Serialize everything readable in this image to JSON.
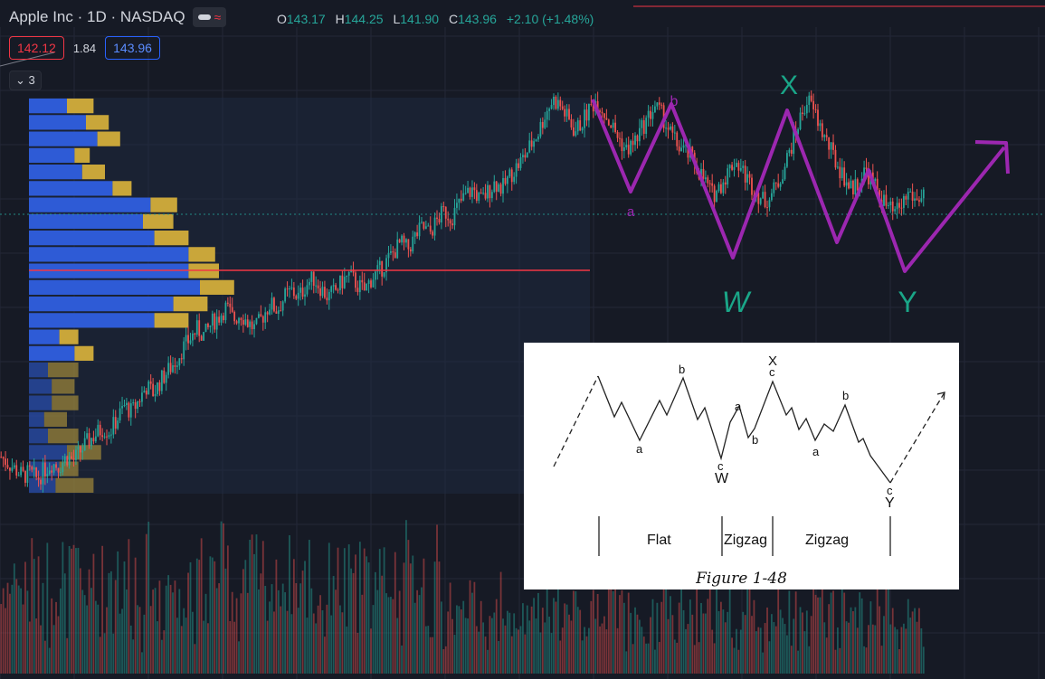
{
  "header": {
    "title": "Apple Inc · 1D · NASDAQ",
    "open_label": "O",
    "open": "143.17",
    "high_label": "H",
    "high": "144.25",
    "low_label": "L",
    "low": "141.90",
    "close_label": "C",
    "close": "143.96",
    "change": "+2.10 (+1.48%)"
  },
  "trade": {
    "sell": "142.12",
    "spread": "1.84",
    "buy": "143.96"
  },
  "indicators_toggle": "3",
  "colors": {
    "up": "#26a69a",
    "down": "#ef5350",
    "annotation": "#9c27b0",
    "wave_label": "#1aa688",
    "poc_line": "#f23645"
  },
  "chart_data": {
    "type": "candlestick",
    "title": "",
    "xlabel": "",
    "ylabel": "",
    "grid": true,
    "price_path": [
      128,
      126,
      124,
      122,
      123,
      121,
      124,
      126,
      125,
      128,
      127,
      130,
      133,
      135,
      137,
      136,
      140,
      144,
      142,
      146,
      150,
      148,
      152,
      155,
      158,
      162,
      165,
      168,
      166,
      170,
      172,
      175,
      171,
      173,
      170,
      168,
      172,
      176,
      174,
      178,
      180,
      178,
      182,
      184,
      181,
      178,
      180,
      183,
      185,
      182,
      180,
      184,
      186,
      189,
      192,
      195,
      193,
      197,
      200,
      198,
      202,
      205,
      203,
      207,
      210,
      212,
      208,
      211,
      214,
      212,
      216,
      219,
      222,
      226,
      230,
      236,
      240,
      238,
      234,
      230,
      233,
      237,
      240,
      236,
      232,
      228,
      224,
      226,
      230,
      234,
      238,
      235,
      230,
      226,
      224,
      222,
      218,
      214,
      210,
      213,
      217,
      221,
      218,
      214,
      211,
      208,
      210,
      214,
      220,
      227,
      234,
      240,
      236,
      230,
      225,
      220,
      216,
      212,
      214,
      218,
      214,
      210,
      206,
      204,
      207,
      211,
      208,
      211
    ],
    "wave_labels": [
      "X",
      "W",
      "Y",
      "a",
      "b"
    ],
    "volume_profile": {
      "up_volumes": [
        10,
        15,
        18,
        12,
        14,
        22,
        32,
        30,
        33,
        42,
        42,
        45,
        38,
        33,
        8,
        12,
        5,
        6,
        6,
        4,
        5,
        10,
        8,
        7
      ],
      "down_volumes": [
        7,
        6,
        6,
        4,
        6,
        5,
        7,
        8,
        9,
        7,
        8,
        9,
        9,
        9,
        5,
        5,
        8,
        6,
        7,
        6,
        8,
        9,
        5,
        10
      ]
    },
    "inset_figure": {
      "caption": "Figure 1-48",
      "segments": [
        "Flat",
        "Zigzag",
        "Zigzag"
      ],
      "wave_labels": [
        "b",
        "X",
        "c",
        "a",
        "a",
        "b",
        "b",
        "a",
        "c",
        "W",
        "c",
        "Y"
      ]
    }
  }
}
